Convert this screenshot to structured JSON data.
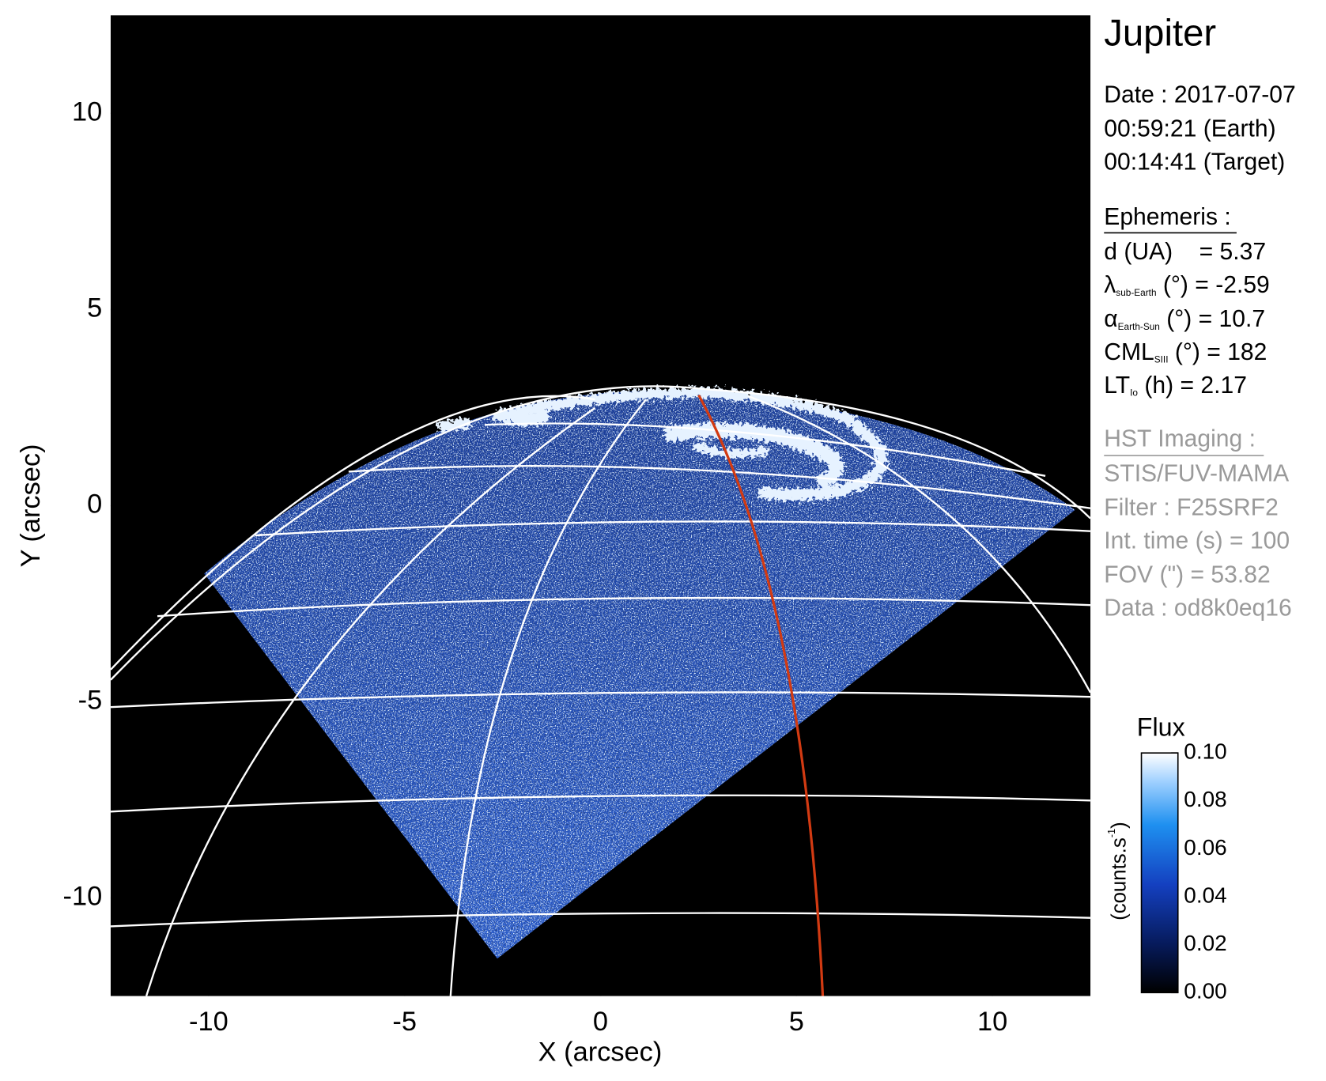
{
  "chart_data": {
    "type": "image",
    "xlabel": "X (arcsec)",
    "ylabel": "Y (arcsec)",
    "xlim": [
      -12.5,
      12.5
    ],
    "ylim": [
      -12.5,
      12.5
    ],
    "xticks": [
      -10,
      -5,
      0,
      5,
      10
    ],
    "yticks": [
      -10,
      -5,
      0,
      5,
      10
    ],
    "colorbar": {
      "title": "Flux",
      "label": {
        "text": "(counts.s",
        "sup": "-1",
        "end": ")"
      },
      "lim": [
        0,
        0.1
      ],
      "ticks": [
        {
          "value": 0,
          "label": "0.00"
        },
        {
          "value": 0.02,
          "label": "0.02"
        },
        {
          "value": 0.04,
          "label": "0.04"
        },
        {
          "value": 0.06,
          "label": "0.06"
        },
        {
          "value": 0.08,
          "label": "0.08"
        },
        {
          "value": 0.1,
          "label": "0.10"
        }
      ]
    }
  },
  "info": {
    "title": "Jupiter",
    "date": [
      "Date : 2017-07-07",
      "00:59:21 (Earth)",
      "00:14:41 (Target)"
    ],
    "ephemeris": {
      "heading": "Ephemeris :",
      "lines": [
        {
          "text": "d (UA)    = 5.37"
        },
        {
          "symbol": "λ",
          "sub": "sub-Earth",
          "text": " (°) = -2.59"
        },
        {
          "symbol": "α",
          "sub": "Earth-Sun",
          "text": " (°) = 10.7"
        },
        {
          "symbol": "CML",
          "sub": "SIII",
          "text": " (°) = 182"
        },
        {
          "symbol": "LT",
          "sub": "Io",
          "text": " (h) = 2.17"
        }
      ]
    },
    "hst": {
      "heading": "HST Imaging :",
      "lines": [
        "STIS/FUV-MAMA",
        "Filter : F25SRF2",
        "Int. time (s) = 100",
        "FOV (\") = 53.82",
        "Data : od8k0eq16"
      ]
    }
  }
}
